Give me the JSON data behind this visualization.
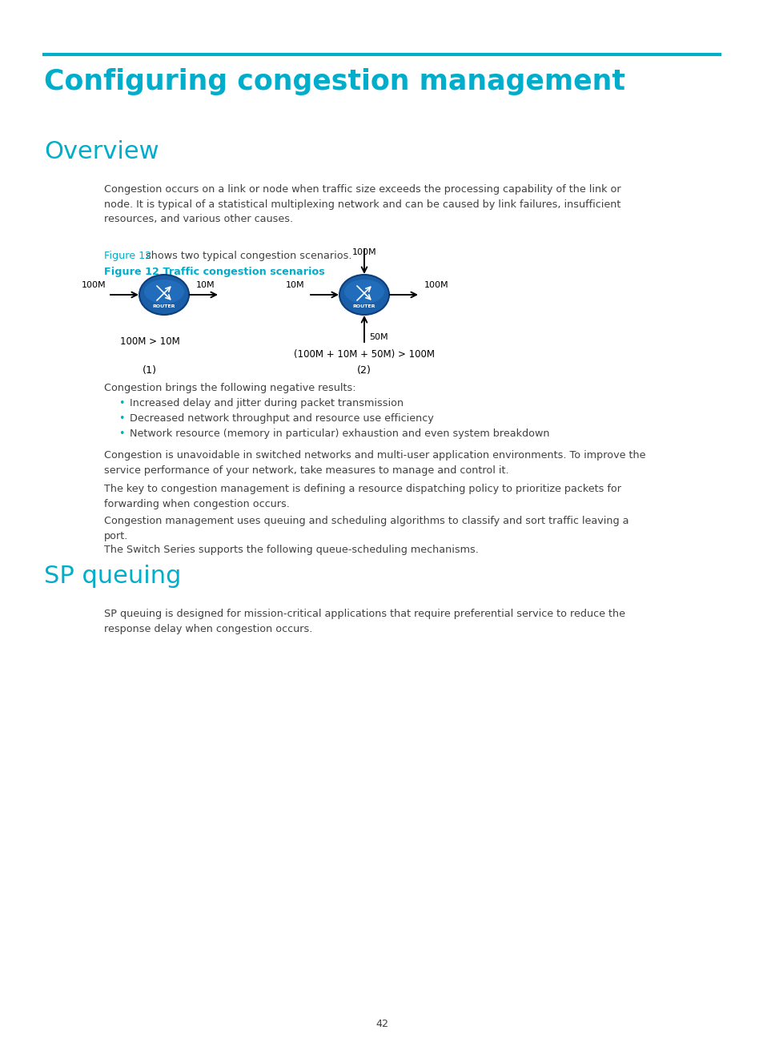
{
  "page_bg": "#ffffff",
  "cyan_color": "#00aecc",
  "text_color": "#404040",
  "header_line_color": "#00aecc",
  "main_title": "Configuring congestion management",
  "section1_title": "Overview",
  "section2_title": "SP queuing",
  "para1": "Congestion occurs on a link or node when traffic size exceeds the processing capability of the link or\nnode. It is typical of a statistical multiplexing network and can be caused by link failures, insufficient\nresources, and various other causes.",
  "figure_ref_link": "Figure 12",
  "figure_ref_rest": " shows two typical congestion scenarios.",
  "figure_caption": "Figure 12 Traffic congestion scenarios",
  "diagram_note1": "100M > 10M",
  "diagram_note2": "(100M + 10M + 50M) > 100M",
  "congestion_intro": "Congestion brings the following negative results:",
  "bullet1": "Increased delay and jitter during packet transmission",
  "bullet2": "Decreased network throughput and resource use efficiency",
  "bullet3": "Network resource (memory in particular) exhaustion and even system breakdown",
  "para2": "Congestion is unavoidable in switched networks and multi-user application environments. To improve the\nservice performance of your network, take measures to manage and control it.",
  "para3": "The key to congestion management is defining a resource dispatching policy to prioritize packets for\nforwarding when congestion occurs.",
  "para4": "Congestion management uses queuing and scheduling algorithms to classify and sort traffic leaving a\nport.",
  "para5": "The Switch Series supports the following queue-scheduling mechanisms.",
  "sp_para": "SP queuing is designed for mission-critical applications that require preferential service to reduce the\nresponse delay when congestion occurs.",
  "page_num": "42"
}
